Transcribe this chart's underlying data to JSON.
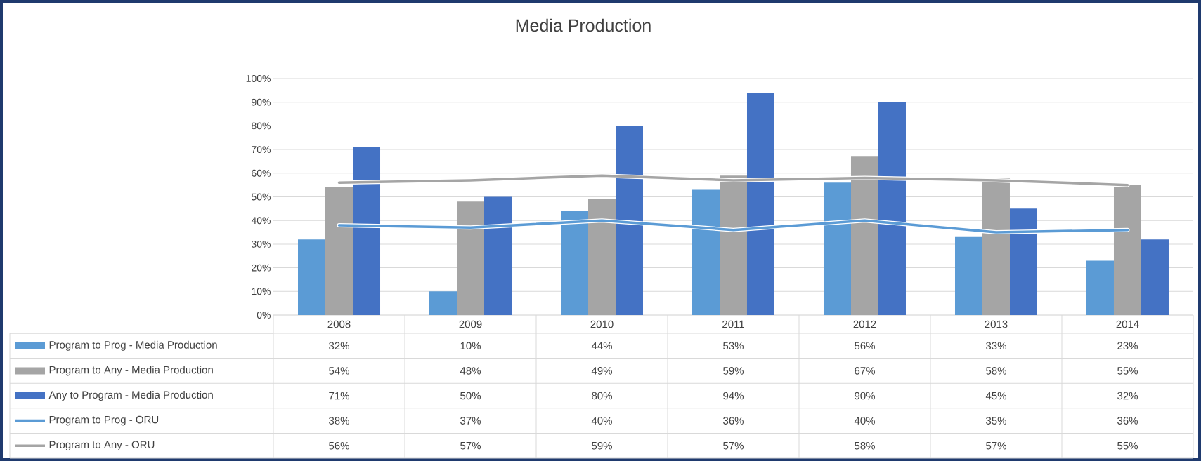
{
  "chart_data": {
    "type": "bar",
    "title": "Media Production",
    "categories": [
      "2008",
      "2009",
      "2010",
      "2011",
      "2012",
      "2013",
      "2014"
    ],
    "series": [
      {
        "name": "Program to Prog - Media Production",
        "color": "#5b9bd5",
        "values": [
          32,
          10,
          44,
          53,
          56,
          33,
          23
        ],
        "value_labels": [
          "32%",
          "10%",
          "44%",
          "53%",
          "56%",
          "33%",
          "23%"
        ]
      },
      {
        "name": "Program to Any - Media Production",
        "color": "#a5a5a5",
        "values": [
          54,
          48,
          49,
          59,
          67,
          58,
          55
        ],
        "value_labels": [
          "54%",
          "48%",
          "49%",
          "59%",
          "67%",
          "58%",
          "55%"
        ]
      },
      {
        "name": "Any to Program - Media Production",
        "color": "#4472c4",
        "values": [
          71,
          50,
          80,
          94,
          90,
          45,
          32
        ],
        "value_labels": [
          "71%",
          "50%",
          "80%",
          "94%",
          "90%",
          "45%",
          "32%"
        ]
      },
      {
        "name": "Program to Prog - ORU",
        "type": "line",
        "color": "#5b9bd5",
        "values": [
          38,
          37,
          40,
          36,
          40,
          35,
          36
        ],
        "value_labels": [
          "38%",
          "37%",
          "40%",
          "36%",
          "40%",
          "35%",
          "36%"
        ]
      },
      {
        "name": "Program to Any - ORU",
        "type": "line",
        "color": "#a5a5a5",
        "values": [
          56,
          57,
          59,
          57,
          58,
          57,
          55
        ],
        "value_labels": [
          "56%",
          "57%",
          "59%",
          "57%",
          "58%",
          "57%",
          "55%"
        ]
      }
    ],
    "ylim": [
      0,
      100
    ],
    "yticks": [
      {
        "value": 0,
        "label": "0%"
      },
      {
        "value": 10,
        "label": "10%"
      },
      {
        "value": 20,
        "label": "20%"
      },
      {
        "value": 30,
        "label": "30%"
      },
      {
        "value": 40,
        "label": "40%"
      },
      {
        "value": 50,
        "label": "50%"
      },
      {
        "value": 60,
        "label": "60%"
      },
      {
        "value": 70,
        "label": "70%"
      },
      {
        "value": 80,
        "label": "80%"
      },
      {
        "value": 90,
        "label": "90%"
      },
      {
        "value": 100,
        "label": "100%"
      }
    ],
    "grid": "y",
    "legend": "bottom"
  }
}
